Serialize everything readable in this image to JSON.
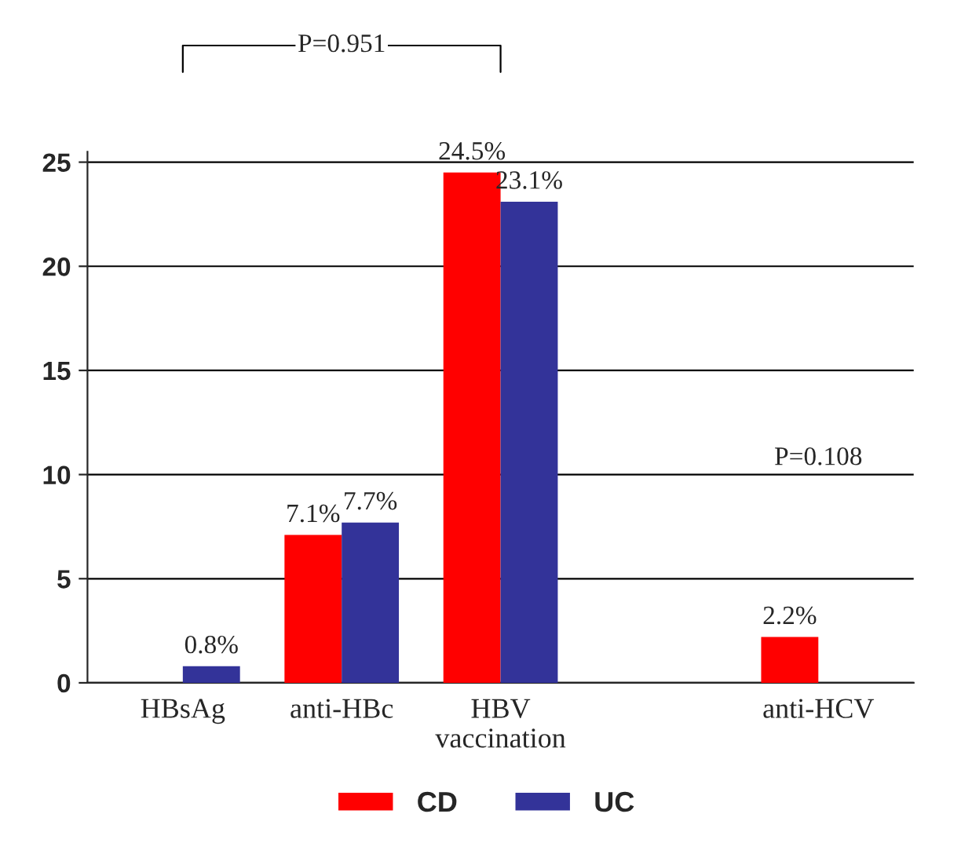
{
  "chart_data": {
    "type": "bar",
    "categories": [
      "HBsAg",
      "anti-HBc",
      "HBV\nvaccination",
      null,
      "anti-HCV"
    ],
    "series": [
      {
        "name": "CD",
        "color": "#ff0000",
        "values": [
          0,
          7.1,
          24.5,
          null,
          2.2
        ],
        "value_labels": [
          null,
          "7.1%",
          "24.5%",
          null,
          "2.2%"
        ]
      },
      {
        "name": "UC",
        "color": "#333399",
        "values": [
          0.8,
          7.7,
          23.1,
          null,
          0
        ],
        "value_labels": [
          "0.8%",
          "7.7%",
          "23.1%",
          null,
          null
        ]
      }
    ],
    "ylim": [
      0,
      25.5
    ],
    "yticks": [
      0,
      5,
      10,
      15,
      20,
      25
    ],
    "grid": "y",
    "legend": "bottom",
    "annotations": [
      "P=0.951",
      "P=0.108"
    ]
  }
}
